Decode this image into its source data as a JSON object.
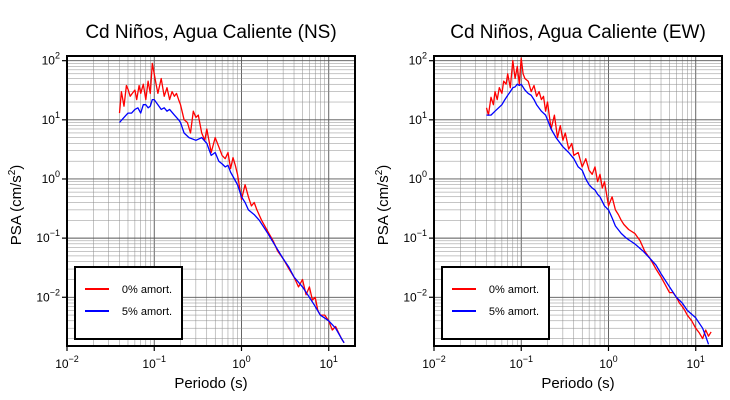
{
  "chart_data": [
    {
      "type": "line",
      "title": "Cd Niños, Agua Caliente (NS)",
      "xlabel": "Periodo (s)",
      "ylabel_prefix": "PSA (cm/s",
      "ylabel_sup": "2",
      "ylabel_suffix": ")",
      "xscale": "log",
      "yscale": "log",
      "xlim": [
        0.01,
        20
      ],
      "ylim": [
        0.0015,
        120
      ],
      "grid": true,
      "legend_position": "bottom-left",
      "x_ticks": [
        {
          "value": 0.01,
          "base": "10",
          "exp": "−2"
        },
        {
          "value": 0.1,
          "base": "10",
          "exp": "−1"
        },
        {
          "value": 1,
          "base": "10",
          "exp": "0"
        },
        {
          "value": 10,
          "base": "10",
          "exp": "1"
        }
      ],
      "y_ticks": [
        {
          "value": 0.01,
          "base": "10",
          "exp": "−2"
        },
        {
          "value": 0.1,
          "base": "10",
          "exp": "−1"
        },
        {
          "value": 1,
          "base": "10",
          "exp": "0"
        },
        {
          "value": 10,
          "base": "10",
          "exp": "1"
        },
        {
          "value": 100,
          "base": "10",
          "exp": "2"
        }
      ],
      "series": [
        {
          "name": "0% amort.",
          "color": "#ff0000",
          "x": [
            0.04,
            0.042,
            0.045,
            0.048,
            0.05,
            0.053,
            0.056,
            0.06,
            0.063,
            0.067,
            0.07,
            0.075,
            0.08,
            0.085,
            0.09,
            0.095,
            0.1,
            0.105,
            0.11,
            0.12,
            0.13,
            0.14,
            0.15,
            0.16,
            0.17,
            0.18,
            0.19,
            0.2,
            0.22,
            0.24,
            0.26,
            0.28,
            0.3,
            0.32,
            0.35,
            0.38,
            0.4,
            0.45,
            0.5,
            0.55,
            0.6,
            0.65,
            0.7,
            0.75,
            0.8,
            0.85,
            0.9,
            1.0,
            1.1,
            1.2,
            1.3,
            1.4,
            1.5,
            1.7,
            2.0,
            2.3,
            2.6,
            3.0,
            3.5,
            4.0,
            4.5,
            5.0,
            5.5,
            6.0,
            6.5,
            7.0,
            7.5,
            8.0,
            9.0,
            10.0,
            11.0,
            12.0,
            13.0,
            14.0,
            15.0
          ],
          "y": [
            13,
            30,
            17,
            38,
            33,
            25,
            28,
            32,
            22,
            38,
            28,
            40,
            22,
            45,
            28,
            90,
            60,
            40,
            28,
            50,
            25,
            35,
            22,
            30,
            25,
            28,
            22,
            18,
            10,
            9,
            6,
            14,
            11,
            12,
            6,
            4.5,
            7,
            2.8,
            5,
            3.5,
            2.5,
            2.2,
            2.8,
            1.5,
            2.3,
            1.7,
            1.2,
            0.45,
            0.8,
            0.5,
            0.35,
            0.4,
            0.3,
            0.2,
            0.13,
            0.09,
            0.06,
            0.045,
            0.03,
            0.022,
            0.015,
            0.02,
            0.011,
            0.015,
            0.009,
            0.01,
            0.006,
            0.005,
            0.005,
            0.004,
            0.0028,
            0.0032,
            0.0025,
            0.002,
            0.0017
          ]
        },
        {
          "name": "5% amort.",
          "color": "#0000ff",
          "x": [
            0.04,
            0.045,
            0.05,
            0.055,
            0.06,
            0.065,
            0.07,
            0.075,
            0.08,
            0.085,
            0.09,
            0.095,
            0.1,
            0.11,
            0.12,
            0.13,
            0.14,
            0.15,
            0.17,
            0.19,
            0.2,
            0.22,
            0.25,
            0.3,
            0.35,
            0.4,
            0.45,
            0.5,
            0.55,
            0.6,
            0.65,
            0.7,
            0.75,
            0.8,
            0.9,
            1.0,
            1.1,
            1.2,
            1.4,
            1.6,
            2.0,
            2.5,
            3.0,
            3.5,
            4.0,
            5.0,
            6.0,
            7.0,
            8.0,
            10.0,
            12.0,
            14.0,
            15.0
          ],
          "y": [
            9,
            11,
            13,
            13,
            15,
            16,
            13,
            18,
            18,
            16,
            17,
            22,
            22,
            18,
            15,
            16,
            14,
            15,
            12,
            10,
            9,
            6,
            5,
            4.5,
            5,
            4,
            2.5,
            2.8,
            2,
            1.8,
            1.6,
            1.7,
            1.3,
            1.1,
            0.8,
            0.5,
            0.4,
            0.3,
            0.25,
            0.2,
            0.12,
            0.07,
            0.045,
            0.032,
            0.022,
            0.015,
            0.01,
            0.007,
            0.005,
            0.004,
            0.003,
            0.002,
            0.0017
          ]
        }
      ]
    },
    {
      "type": "line",
      "title": "Cd Niños, Agua Caliente (EW)",
      "xlabel": "Periodo (s)",
      "ylabel_prefix": "PSA (cm/s",
      "ylabel_sup": "2",
      "ylabel_suffix": ")",
      "xscale": "log",
      "yscale": "log",
      "xlim": [
        0.01,
        20
      ],
      "ylim": [
        0.0015,
        120
      ],
      "grid": true,
      "legend_position": "bottom-left",
      "x_ticks": [
        {
          "value": 0.01,
          "base": "10",
          "exp": "−2"
        },
        {
          "value": 0.1,
          "base": "10",
          "exp": "−1"
        },
        {
          "value": 1,
          "base": "10",
          "exp": "0"
        },
        {
          "value": 10,
          "base": "10",
          "exp": "1"
        }
      ],
      "y_ticks": [
        {
          "value": 0.01,
          "base": "10",
          "exp": "−2"
        },
        {
          "value": 0.1,
          "base": "10",
          "exp": "−1"
        },
        {
          "value": 1,
          "base": "10",
          "exp": "0"
        },
        {
          "value": 10,
          "base": "10",
          "exp": "1"
        },
        {
          "value": 100,
          "base": "10",
          "exp": "2"
        }
      ],
      "series": [
        {
          "name": "0% amort.",
          "color": "#ff0000",
          "x": [
            0.04,
            0.042,
            0.045,
            0.048,
            0.05,
            0.053,
            0.056,
            0.06,
            0.063,
            0.067,
            0.07,
            0.075,
            0.08,
            0.085,
            0.09,
            0.095,
            0.1,
            0.105,
            0.11,
            0.12,
            0.13,
            0.14,
            0.15,
            0.16,
            0.17,
            0.18,
            0.19,
            0.2,
            0.22,
            0.24,
            0.26,
            0.28,
            0.3,
            0.32,
            0.35,
            0.38,
            0.4,
            0.45,
            0.5,
            0.55,
            0.6,
            0.65,
            0.7,
            0.75,
            0.8,
            0.85,
            0.9,
            1.0,
            1.1,
            1.2,
            1.3,
            1.4,
            1.5,
            1.7,
            2.0,
            2.3,
            2.6,
            3.0,
            3.5,
            4.0,
            4.5,
            5.0,
            5.5,
            6.0,
            6.5,
            7.0,
            7.5,
            8.0,
            9.0,
            10.0,
            11.0,
            12.0,
            13.0,
            14.0,
            15.0
          ],
          "y": [
            16,
            12,
            24,
            18,
            30,
            22,
            35,
            28,
            45,
            40,
            60,
            35,
            100,
            50,
            80,
            40,
            110,
            60,
            50,
            45,
            30,
            38,
            25,
            30,
            22,
            25,
            14,
            20,
            7,
            12,
            5,
            8,
            4.5,
            6,
            3.2,
            4,
            2.5,
            2.8,
            1.6,
            2.2,
            1.4,
            1.2,
            1.6,
            0.9,
            1.2,
            0.7,
            0.9,
            0.35,
            0.5,
            0.3,
            0.25,
            0.2,
            0.17,
            0.14,
            0.12,
            0.09,
            0.06,
            0.045,
            0.03,
            0.022,
            0.016,
            0.012,
            0.012,
            0.01,
            0.008,
            0.007,
            0.006,
            0.005,
            0.004,
            0.003,
            0.0025,
            0.002,
            0.0028,
            0.0022,
            0.0026
          ]
        },
        {
          "name": "5% amort.",
          "color": "#0000ff",
          "x": [
            0.04,
            0.045,
            0.05,
            0.055,
            0.06,
            0.065,
            0.07,
            0.075,
            0.08,
            0.085,
            0.09,
            0.095,
            0.1,
            0.11,
            0.12,
            0.13,
            0.14,
            0.15,
            0.17,
            0.19,
            0.2,
            0.22,
            0.25,
            0.3,
            0.35,
            0.4,
            0.45,
            0.5,
            0.55,
            0.6,
            0.65,
            0.7,
            0.75,
            0.8,
            0.9,
            1.0,
            1.1,
            1.2,
            1.4,
            1.6,
            2.0,
            2.5,
            3.0,
            3.5,
            4.0,
            5.0,
            6.0,
            7.0,
            8.0,
            10.0,
            12.0,
            13.0,
            14.0
          ],
          "y": [
            12,
            12,
            14,
            16,
            18,
            22,
            26,
            30,
            35,
            36,
            40,
            38,
            40,
            32,
            28,
            26,
            22,
            18,
            14,
            12,
            10,
            7,
            5,
            3.5,
            2.8,
            2.2,
            1.6,
            1.4,
            1.0,
            0.8,
            0.7,
            0.65,
            0.55,
            0.5,
            0.35,
            0.3,
            0.22,
            0.16,
            0.12,
            0.1,
            0.08,
            0.06,
            0.045,
            0.035,
            0.025,
            0.015,
            0.01,
            0.008,
            0.006,
            0.0045,
            0.003,
            0.0022,
            0.0016
          ]
        }
      ]
    }
  ]
}
